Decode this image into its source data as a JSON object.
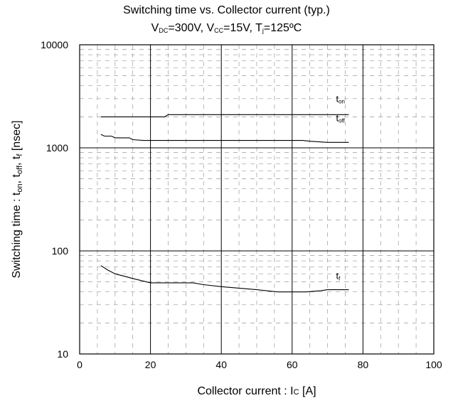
{
  "chart_data": {
    "type": "line",
    "title": "Switching time vs. Collector current (typ.)",
    "subtitle": {
      "vdc_prefix": "V",
      "vdc_sub": "DC",
      "vdc_value": "=300V, ",
      "vcc_prefix": "V",
      "vcc_sub": "CC",
      "vcc_value": "=15V, ",
      "tj_prefix": "T",
      "tj_sub": "j",
      "tj_value": "=125ºC"
    },
    "xlabel": {
      "text": "Collector current : I",
      "sub": "C",
      "unit": " [A]"
    },
    "ylabel": {
      "p1": "Switching time : t",
      "s1": "on",
      "p2": ", t",
      "s2": "off",
      "p3": ", t",
      "s3": "f",
      "p4": " [nsec]"
    },
    "xlim": [
      0,
      100
    ],
    "ylim": [
      10,
      10000
    ],
    "yscale": "log",
    "xticks": [
      "0",
      "20",
      "40",
      "60",
      "80",
      "100"
    ],
    "yticks": [
      "10",
      "100",
      "1000",
      "10000"
    ],
    "grid": true,
    "series": [
      {
        "name": "t",
        "sub": "on",
        "x": [
          6,
          10,
          15,
          20,
          24,
          25,
          30,
          40,
          50,
          60,
          70,
          76
        ],
        "y": [
          2000,
          2000,
          2000,
          2000,
          2000,
          2100,
          2100,
          2100,
          2100,
          2100,
          2100,
          2100
        ]
      },
      {
        "name": "t",
        "sub": "off",
        "x": [
          6,
          7,
          9,
          10,
          11,
          14,
          15,
          18,
          20,
          30,
          40,
          50,
          60,
          63,
          65,
          70,
          76
        ],
        "y": [
          1350,
          1300,
          1300,
          1250,
          1250,
          1250,
          1200,
          1180,
          1180,
          1180,
          1180,
          1180,
          1180,
          1180,
          1160,
          1130,
          1130
        ]
      },
      {
        "name": "t",
        "sub": "f",
        "x": [
          6,
          8,
          10,
          15,
          20,
          25,
          32,
          35,
          40,
          50,
          56,
          60,
          64,
          68,
          70,
          76
        ],
        "y": [
          72,
          65,
          60,
          54,
          49,
          49,
          49,
          47,
          45,
          42,
          40,
          40,
          40,
          41,
          42,
          42
        ]
      }
    ]
  }
}
